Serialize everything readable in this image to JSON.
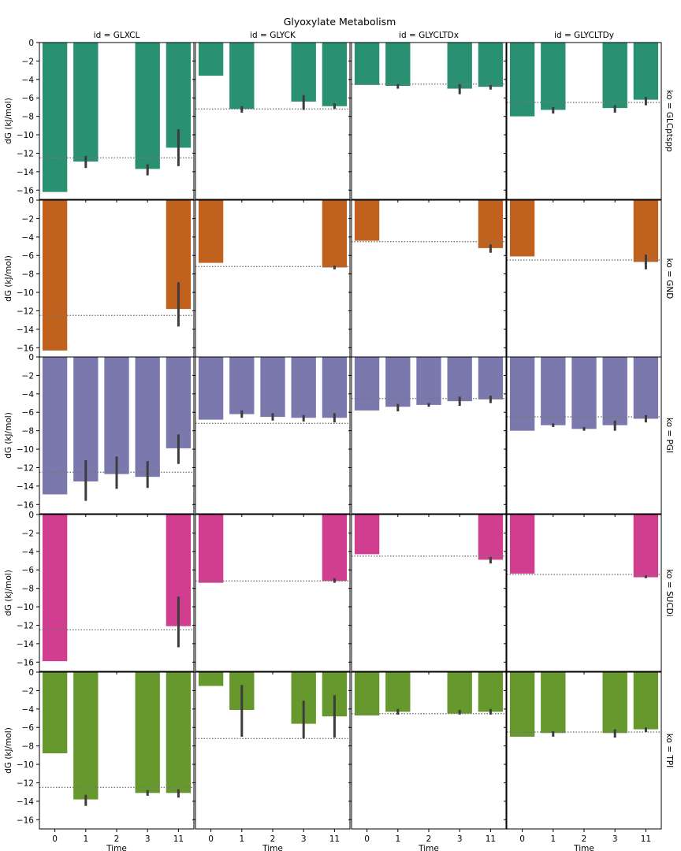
{
  "chart_data": {
    "type": "bar",
    "title": "Glyoxylate Metabolism",
    "xlabel": "Time",
    "ylabel": "dG (kJ/mol)",
    "ylim": [
      -17,
      0
    ],
    "yticks": [
      0,
      -2,
      -4,
      -6,
      -8,
      -10,
      -12,
      -14,
      -16
    ],
    "categories": [
      "0",
      "1",
      "2",
      "3",
      "11"
    ],
    "columns": [
      "id = GLXCL",
      "id = GLYCK",
      "id = GLYCLTDx",
      "id = GLYCLTDy"
    ],
    "rows": [
      {
        "label": "ko = GLCptspp",
        "color": "#2a9072"
      },
      {
        "label": "ko = GND",
        "color": "#c0621e"
      },
      {
        "label": "ko = PGI",
        "color": "#7b78ad"
      },
      {
        "label": "ko = SUCDi",
        "color": "#d13e8f"
      },
      {
        "label": "ko = TPI",
        "color": "#66982e"
      }
    ],
    "reference_lines": [
      -12.5,
      -7.2,
      -4.5,
      -6.5
    ],
    "panels": [
      [
        {
          "values": [
            -16.2,
            -12.9,
            null,
            -13.7,
            -11.4
          ],
          "errors": [
            null,
            [
              -13.6,
              -12.3
            ],
            null,
            [
              -14.4,
              -13.2
            ],
            [
              -13.4,
              -9.4
            ]
          ]
        },
        {
          "values": [
            -3.6,
            -7.2,
            null,
            -6.4,
            -6.9
          ],
          "errors": [
            null,
            [
              -7.6,
              -6.9
            ],
            null,
            [
              -7.3,
              -5.7
            ],
            [
              -7.2,
              -6.6
            ]
          ]
        },
        {
          "values": [
            -4.6,
            -4.7,
            null,
            -5.0,
            -4.8
          ],
          "errors": [
            null,
            [
              -5.0,
              -4.5
            ],
            null,
            [
              -5.6,
              -4.5
            ],
            [
              -5.1,
              -4.6
            ]
          ]
        },
        {
          "values": [
            -8.0,
            -7.3,
            null,
            -7.1,
            -6.2
          ],
          "errors": [
            null,
            [
              -7.7,
              -7.0
            ],
            null,
            [
              -7.6,
              -6.8
            ],
            [
              -6.8,
              -5.9
            ]
          ]
        }
      ],
      [
        {
          "values": [
            -16.3,
            null,
            null,
            null,
            -11.8
          ],
          "errors": [
            null,
            null,
            null,
            null,
            [
              -13.7,
              -8.9
            ]
          ]
        },
        {
          "values": [
            -6.8,
            null,
            null,
            null,
            -7.3
          ],
          "errors": [
            null,
            null,
            null,
            null,
            [
              -7.5,
              -7.1
            ]
          ]
        },
        {
          "values": [
            -4.4,
            null,
            null,
            null,
            -5.2
          ],
          "errors": [
            null,
            null,
            null,
            null,
            [
              -5.7,
              -4.8
            ]
          ]
        },
        {
          "values": [
            -6.1,
            null,
            null,
            null,
            -6.7
          ],
          "errors": [
            null,
            null,
            null,
            null,
            [
              -7.5,
              -5.9
            ]
          ]
        }
      ],
      [
        {
          "values": [
            -14.9,
            -13.5,
            -12.7,
            -13.0,
            -9.9
          ],
          "errors": [
            null,
            [
              -15.6,
              -11.2
            ],
            [
              -14.3,
              -10.8
            ],
            [
              -14.2,
              -11.3
            ],
            [
              -11.6,
              -8.4
            ]
          ]
        },
        {
          "values": [
            -6.8,
            -6.2,
            -6.5,
            -6.6,
            -6.6
          ],
          "errors": [
            null,
            [
              -6.6,
              -5.8
            ],
            [
              -6.9,
              -6.1
            ],
            [
              -7.0,
              -6.3
            ],
            [
              -7.1,
              -6.1
            ]
          ]
        },
        {
          "values": [
            -5.8,
            -5.4,
            -5.2,
            -4.8,
            -4.6
          ],
          "errors": [
            null,
            [
              -5.9,
              -5.1
            ],
            [
              -5.4,
              -5.0
            ],
            [
              -5.3,
              -4.3
            ],
            [
              -5.0,
              -4.2
            ]
          ]
        },
        {
          "values": [
            -8.0,
            -7.4,
            -7.8,
            -7.4,
            -6.7
          ],
          "errors": [
            null,
            [
              -7.6,
              -7.2
            ],
            [
              -8.0,
              -7.6
            ],
            [
              -8.0,
              -6.9
            ],
            [
              -7.1,
              -6.3
            ]
          ]
        }
      ],
      [
        {
          "values": [
            -15.9,
            null,
            null,
            null,
            -12.1
          ],
          "errors": [
            null,
            null,
            null,
            null,
            [
              -14.4,
              -8.9
            ]
          ]
        },
        {
          "values": [
            -7.4,
            null,
            null,
            null,
            -7.2
          ],
          "errors": [
            null,
            null,
            null,
            null,
            [
              -7.4,
              -6.9
            ]
          ]
        },
        {
          "values": [
            -4.3,
            null,
            null,
            null,
            -4.9
          ],
          "errors": [
            null,
            null,
            null,
            null,
            [
              -5.3,
              -4.6
            ]
          ]
        },
        {
          "values": [
            -6.4,
            null,
            null,
            null,
            -6.8
          ],
          "errors": [
            null,
            null,
            null,
            null,
            [
              -6.9,
              -6.6
            ]
          ]
        }
      ],
      [
        {
          "values": [
            -8.8,
            -13.8,
            null,
            -13.1,
            -13.1
          ],
          "errors": [
            null,
            [
              -14.5,
              -13.3
            ],
            null,
            [
              -13.4,
              -12.8
            ],
            [
              -13.6,
              -12.7
            ]
          ]
        },
        {
          "values": [
            -1.5,
            -4.1,
            null,
            -5.6,
            -4.8
          ],
          "errors": [
            null,
            [
              -7.0,
              -1.4
            ],
            null,
            [
              -7.2,
              -3.1
            ],
            [
              -7.1,
              -2.5
            ]
          ]
        },
        {
          "values": [
            -4.7,
            -4.3,
            null,
            -4.5,
            -4.3
          ],
          "errors": [
            null,
            [
              -4.6,
              -4.0
            ],
            null,
            [
              -4.6,
              -4.1
            ],
            [
              -4.6,
              -4.0
            ]
          ]
        },
        {
          "values": [
            -7.0,
            -6.6,
            null,
            -6.6,
            -6.2
          ],
          "errors": [
            null,
            [
              -7.0,
              -6.4
            ],
            null,
            [
              -7.1,
              -6.2
            ],
            [
              -6.5,
              -6.0
            ]
          ]
        }
      ]
    ]
  }
}
